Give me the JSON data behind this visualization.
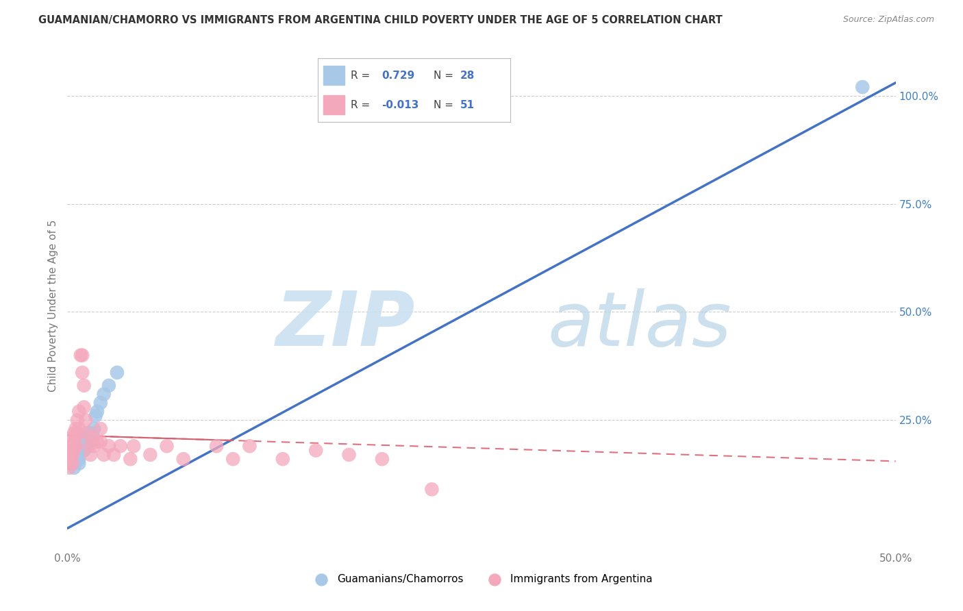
{
  "title": "GUAMANIAN/CHAMORRO VS IMMIGRANTS FROM ARGENTINA CHILD POVERTY UNDER THE AGE OF 5 CORRELATION CHART",
  "source": "Source: ZipAtlas.com",
  "ylabel": "Child Poverty Under the Age of 5",
  "xlim": [
    0.0,
    0.5
  ],
  "ylim": [
    -0.05,
    1.08
  ],
  "xticks": [
    0.0,
    0.1,
    0.2,
    0.3,
    0.4,
    0.5
  ],
  "xticklabels": [
    "0.0%",
    "",
    "",
    "",
    "",
    "50.0%"
  ],
  "yticks": [
    0.0,
    0.25,
    0.5,
    0.75,
    1.0
  ],
  "yticklabels_right": [
    "25.0%",
    "50.0%",
    "75.0%",
    "100.0%"
  ],
  "ytick_right_vals": [
    0.25,
    0.5,
    0.75,
    1.0
  ],
  "watermark_zip": "ZIP",
  "watermark_atlas": "atlas",
  "legend_R1": "R =  0.729",
  "legend_N1": "N = 28",
  "legend_R2": "R = -0.013",
  "legend_N2": "N = 51",
  "color_guam": "#a8c8e8",
  "color_arg": "#f4a8bc",
  "line_color_guam": "#4472c4",
  "line_color_arg": "#e07080",
  "line_color_arg_solid": "#d46070",
  "background_color": "#ffffff",
  "grid_color": "#cccccc",
  "right_axis_color": "#4080c0",
  "guam_x": [
    0.002,
    0.004,
    0.005,
    0.006,
    0.006,
    0.007,
    0.007,
    0.008,
    0.008,
    0.009,
    0.009,
    0.01,
    0.01,
    0.011,
    0.011,
    0.012,
    0.013,
    0.014,
    0.015,
    0.015,
    0.016,
    0.017,
    0.018,
    0.02,
    0.022,
    0.025,
    0.03,
    0.48
  ],
  "guam_y": [
    0.16,
    0.14,
    0.17,
    0.18,
    0.17,
    0.15,
    0.16,
    0.19,
    0.18,
    0.2,
    0.19,
    0.2,
    0.18,
    0.21,
    0.2,
    0.22,
    0.21,
    0.2,
    0.22,
    0.21,
    0.23,
    0.26,
    0.27,
    0.29,
    0.31,
    0.33,
    0.36,
    1.02
  ],
  "arg_x": [
    0.001,
    0.001,
    0.001,
    0.002,
    0.002,
    0.002,
    0.003,
    0.003,
    0.003,
    0.003,
    0.004,
    0.004,
    0.004,
    0.005,
    0.005,
    0.005,
    0.006,
    0.006,
    0.007,
    0.007,
    0.008,
    0.009,
    0.009,
    0.01,
    0.01,
    0.011,
    0.012,
    0.013,
    0.014,
    0.015,
    0.016,
    0.018,
    0.02,
    0.02,
    0.022,
    0.025,
    0.028,
    0.032,
    0.038,
    0.04,
    0.05,
    0.06,
    0.07,
    0.09,
    0.1,
    0.11,
    0.13,
    0.15,
    0.17,
    0.19,
    0.22
  ],
  "arg_y": [
    0.18,
    0.16,
    0.14,
    0.19,
    0.17,
    0.15,
    0.21,
    0.19,
    0.17,
    0.15,
    0.22,
    0.2,
    0.18,
    0.23,
    0.21,
    0.19,
    0.25,
    0.22,
    0.27,
    0.23,
    0.4,
    0.4,
    0.36,
    0.33,
    0.28,
    0.25,
    0.22,
    0.19,
    0.17,
    0.21,
    0.19,
    0.2,
    0.23,
    0.2,
    0.17,
    0.19,
    0.17,
    0.19,
    0.16,
    0.19,
    0.17,
    0.19,
    0.16,
    0.19,
    0.16,
    0.19,
    0.16,
    0.18,
    0.17,
    0.16,
    0.09
  ],
  "guam_trend_x": [
    0.0,
    0.5
  ],
  "guam_trend_y": [
    0.0,
    1.03
  ],
  "arg_trend_x": [
    0.0,
    0.5
  ],
  "arg_trend_y": [
    0.215,
    0.155
  ]
}
